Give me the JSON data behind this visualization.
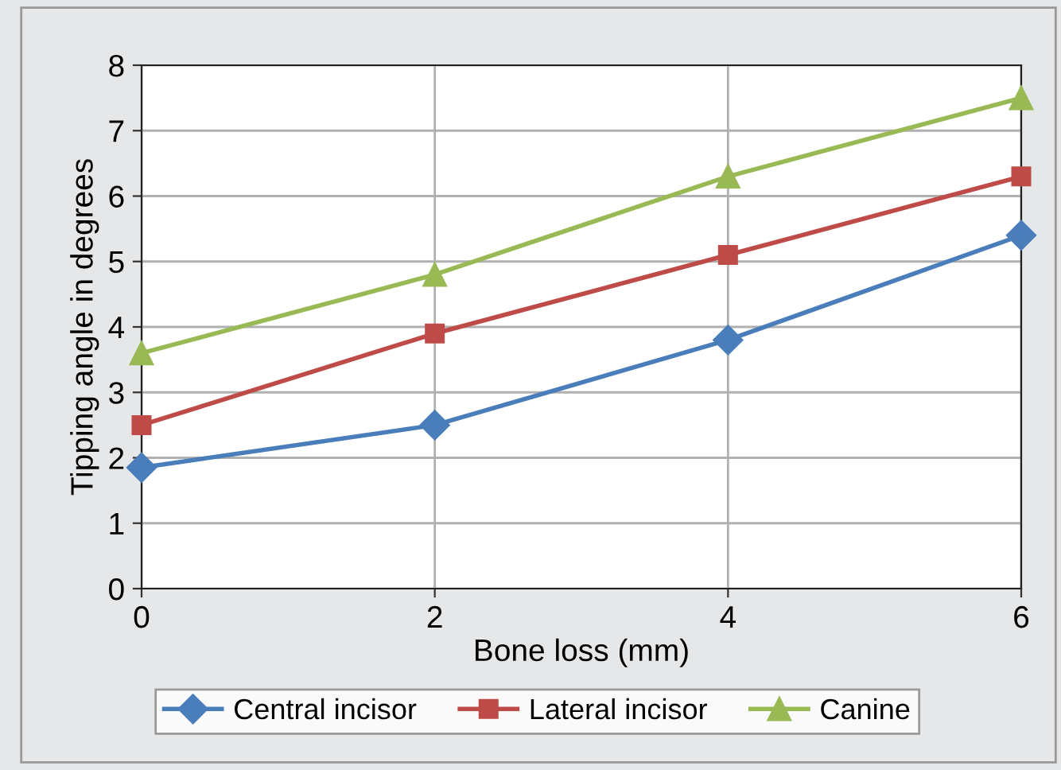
{
  "chart_data": {
    "type": "line",
    "xlabel": "Bone loss (mm)",
    "ylabel": "Tipping angle in degrees",
    "x": [
      0,
      2,
      4,
      6
    ],
    "xlim": [
      0,
      6
    ],
    "xticks": [
      0,
      2,
      4,
      6
    ],
    "ylim": [
      0,
      8
    ],
    "yticks": [
      0,
      1,
      2,
      3,
      4,
      5,
      6,
      7,
      8
    ],
    "series": [
      {
        "name": "Central incisor",
        "color": "#4a7ebb",
        "marker": "diamond",
        "values": [
          1.85,
          2.5,
          3.8,
          5.4
        ]
      },
      {
        "name": "Lateral incisor",
        "color": "#be4b48",
        "marker": "square",
        "values": [
          2.5,
          3.9,
          5.1,
          6.3
        ]
      },
      {
        "name": "Canine",
        "color": "#98b954",
        "marker": "triangle",
        "values": [
          3.6,
          4.8,
          6.3,
          7.5
        ]
      }
    ],
    "grid": true,
    "legend": "bottom",
    "line_style": "solid"
  }
}
